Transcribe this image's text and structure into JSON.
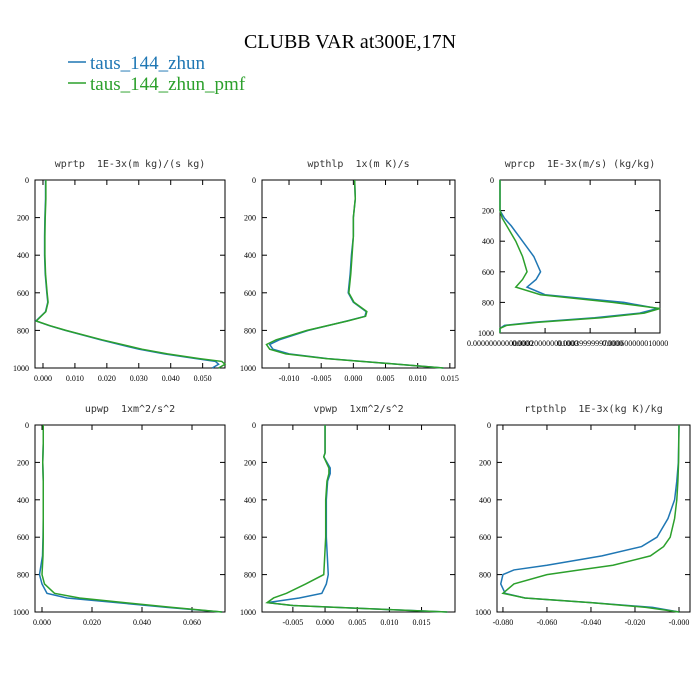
{
  "title": "CLUBB VAR at300E,17N",
  "chart_data": [
    {
      "type": "line",
      "title": "wprtp  1E-3x(m kg)/(s kg)",
      "y": [
        0,
        100,
        200,
        300,
        400,
        500,
        600,
        650,
        700,
        750,
        775,
        800,
        850,
        900,
        925,
        950,
        965,
        980,
        1000
      ],
      "series": [
        {
          "name": "taus_144_zhun",
          "color": "#1f77b4",
          "values": [
            0.0008,
            0.0008,
            0.0006,
            0.0005,
            0.0005,
            0.0007,
            0.0012,
            0.0015,
            0.0008,
            -0.0022,
            0.002,
            0.007,
            0.018,
            0.03,
            0.038,
            0.048,
            0.054,
            0.055,
            0.053
          ]
        },
        {
          "name": "taus_144_zhun_pmf",
          "color": "#2ca02c",
          "values": [
            0.0009,
            0.0009,
            0.0007,
            0.0006,
            0.0006,
            0.0008,
            0.0013,
            0.0016,
            0.0009,
            -0.0021,
            0.0022,
            0.0072,
            0.0185,
            0.031,
            0.039,
            0.049,
            0.056,
            0.057,
            0.055
          ]
        }
      ],
      "xlim": [
        -0.0025,
        0.057
      ],
      "ylim": [
        0,
        1000
      ],
      "y_reversed": true,
      "xticks": [
        {
          "value": 0,
          "label": "0.000"
        },
        {
          "value": 0.01,
          "label": "0.010"
        },
        {
          "value": 0.02,
          "label": "0.020"
        },
        {
          "value": 0.03,
          "label": "0.030"
        },
        {
          "value": 0.04,
          "label": "0.040"
        },
        {
          "value": 0.05,
          "label": "0.050"
        }
      ],
      "yticks": [
        0,
        200,
        400,
        600,
        800,
        1000
      ]
    },
    {
      "type": "line",
      "title": "wpthlp  1x(m K)/s",
      "y": [
        0,
        100,
        200,
        300,
        400,
        500,
        600,
        650,
        700,
        725,
        750,
        800,
        850,
        875,
        900,
        925,
        950,
        975,
        1000
      ],
      "series": [
        {
          "name": "taus_144_zhun",
          "color": "#1f77b4",
          "values": [
            0.0002,
            0.0003,
            0,
            0,
            -0.0003,
            -0.0005,
            -0.0008,
            0,
            0.002,
            0.0018,
            -0.001,
            -0.007,
            -0.0115,
            -0.013,
            -0.0125,
            -0.01,
            -0.004,
            0.005,
            0.014
          ]
        },
        {
          "name": "taus_144_zhun_pmf",
          "color": "#2ca02c",
          "values": [
            0.0002,
            0.0003,
            0,
            0,
            -0.0002,
            -0.0004,
            -0.0007,
            0.0001,
            0.0021,
            0.0019,
            -0.0009,
            -0.0072,
            -0.012,
            -0.0135,
            -0.013,
            -0.0105,
            -0.0042,
            0.005,
            0.014
          ]
        }
      ],
      "xlim": [
        -0.0142,
        0.0158
      ],
      "ylim": [
        0,
        1000
      ],
      "y_reversed": true,
      "xticks": [
        {
          "value": -0.01,
          "label": "-0.010"
        },
        {
          "value": -0.005,
          "label": "-0.005"
        },
        {
          "value": 0,
          "label": "0.000"
        },
        {
          "value": 0.005,
          "label": "0.005"
        },
        {
          "value": 0.01,
          "label": "0.010"
        },
        {
          "value": 0.015,
          "label": "0.015"
        }
      ],
      "yticks": [
        0,
        200,
        400,
        600,
        800,
        1000
      ]
    },
    {
      "type": "line",
      "title": "wprcp  1E-3x(m/s) (kg/kg)",
      "y": [
        0,
        200,
        250,
        300,
        400,
        500,
        600,
        650,
        700,
        750,
        800,
        840,
        870,
        900,
        930,
        950,
        970,
        1000
      ],
      "series": [
        {
          "name": "taus_144_zhun",
          "color": "#1f77b4",
          "values": [
            0,
            0,
            2e-05,
            5e-05,
            0.0001,
            0.00015,
            0.00018,
            0.00016,
            0.00012,
            0.0002,
            0.00055,
            0.0007,
            0.00062,
            0.00042,
            0.00015,
            2e-05,
            0,
            0
          ]
        },
        {
          "name": "taus_144_zhun_pmf",
          "color": "#2ca02c",
          "values": [
            0,
            0,
            1e-05,
            3e-05,
            7e-05,
            0.0001,
            0.00012,
            0.0001,
            7e-05,
            0.00018,
            0.0005,
            0.00071,
            0.00064,
            0.00045,
            0.00017,
            3e-05,
            0,
            0
          ]
        }
      ],
      "xlim": [
        0,
        0.00071
      ],
      "ylim": [
        0,
        1000
      ],
      "y_reversed": true,
      "xticks": [
        {
          "value": 0,
          "label": "0.000000000000000"
        },
        {
          "value": 0.0002,
          "label": "0.000200000001000"
        },
        {
          "value": 0.0004,
          "label": "0.000399999970000"
        },
        {
          "value": 0.0006,
          "label": "0.000600000010000"
        }
      ],
      "yticks": [
        0,
        200,
        400,
        600,
        800,
        1000
      ]
    },
    {
      "type": "line",
      "title": "upwp  1xm^2/s^2",
      "y": [
        0,
        100,
        200,
        300,
        400,
        500,
        600,
        700,
        800,
        850,
        900,
        925,
        950,
        975,
        1000
      ],
      "series": [
        {
          "name": "taus_144_zhun",
          "color": "#1f77b4",
          "values": [
            0.0005,
            0.0005,
            0.0003,
            0.0005,
            0.0005,
            0.0005,
            0.0004,
            0.0002,
            -0.001,
            0,
            0.002,
            0.01,
            0.03,
            0.05,
            0.072
          ]
        },
        {
          "name": "taus_144_zhun_pmf",
          "color": "#2ca02c",
          "values": [
            0.0005,
            0.0005,
            0.0003,
            0.0005,
            0.0005,
            0.0005,
            0.0005,
            0.0004,
            0,
            0.001,
            0.005,
            0.015,
            0.033,
            0.052,
            0.072
          ]
        }
      ],
      "xlim": [
        -0.0028,
        0.0732
      ],
      "ylim": [
        0,
        1000
      ],
      "y_reversed": true,
      "xticks": [
        {
          "value": 0,
          "label": "0.000"
        },
        {
          "value": 0.02,
          "label": "0.020"
        },
        {
          "value": 0.04,
          "label": "0.040"
        },
        {
          "value": 0.06,
          "label": "0.060"
        }
      ],
      "yticks": [
        0,
        200,
        400,
        600,
        800,
        1000
      ]
    },
    {
      "type": "line",
      "title": "vpwp  1xm^2/s^2",
      "y": [
        0,
        100,
        150,
        170,
        200,
        230,
        260,
        300,
        400,
        600,
        800,
        850,
        900,
        925,
        950,
        965,
        980,
        1000
      ],
      "series": [
        {
          "name": "taus_144_zhun",
          "color": "#1f77b4",
          "values": [
            0,
            0,
            0,
            -0.0002,
            0.0003,
            0.0008,
            0.0008,
            0.0004,
            0.0002,
            0.0002,
            0.0005,
            0.0002,
            -0.0005,
            -0.004,
            -0.009,
            -0.005,
            0.005,
            0.019
          ]
        },
        {
          "name": "taus_144_zhun_pmf",
          "color": "#2ca02c",
          "values": [
            0,
            0,
            0,
            -0.0002,
            0.0002,
            0.0006,
            0.0006,
            0.0003,
            0.0001,
            0.0001,
            -0.0002,
            -0.003,
            -0.006,
            -0.008,
            -0.009,
            -0.005,
            0.005,
            0.019
          ]
        }
      ],
      "xlim": [
        -0.0098,
        0.0202
      ],
      "ylim": [
        0,
        1000
      ],
      "y_reversed": true,
      "xticks": [
        {
          "value": -0.005,
          "label": "-0.005"
        },
        {
          "value": 0,
          "label": "0.000"
        },
        {
          "value": 0.005,
          "label": "0.005"
        },
        {
          "value": 0.01,
          "label": "0.010"
        },
        {
          "value": 0.015,
          "label": "0.015"
        }
      ],
      "yticks": [
        0,
        200,
        400,
        600,
        800,
        1000
      ]
    },
    {
      "type": "line",
      "title": "rtpthlp  1E-3x(kg K)/kg",
      "y": [
        0,
        200,
        300,
        400,
        500,
        600,
        650,
        700,
        750,
        775,
        800,
        850,
        900,
        925,
        950,
        975,
        1000
      ],
      "series": [
        {
          "name": "taus_144_zhun",
          "color": "#1f77b4",
          "values": [
            0,
            -0.0003,
            -0.001,
            -0.002,
            -0.005,
            -0.01,
            -0.017,
            -0.035,
            -0.06,
            -0.075,
            -0.08,
            -0.081,
            -0.079,
            -0.07,
            -0.04,
            -0.012,
            0
          ]
        },
        {
          "name": "taus_144_zhun_pmf",
          "color": "#2ca02c",
          "values": [
            0,
            -0.0002,
            -0.0005,
            -0.001,
            -0.002,
            -0.004,
            -0.007,
            -0.013,
            -0.03,
            -0.045,
            -0.06,
            -0.075,
            -0.08,
            -0.07,
            -0.04,
            -0.015,
            0
          ]
        }
      ],
      "xlim": [
        -0.0827,
        0.005
      ],
      "ylim": [
        0,
        1000
      ],
      "y_reversed": true,
      "xticks": [
        {
          "value": -0.08,
          "label": "-0.080"
        },
        {
          "value": -0.06,
          "label": "-0.060"
        },
        {
          "value": -0.04,
          "label": "-0.040"
        },
        {
          "value": -0.02,
          "label": "-0.020"
        },
        {
          "value": 0,
          "label": "-0.000"
        }
      ],
      "yticks": [
        0,
        200,
        400,
        600,
        800,
        1000
      ]
    }
  ]
}
